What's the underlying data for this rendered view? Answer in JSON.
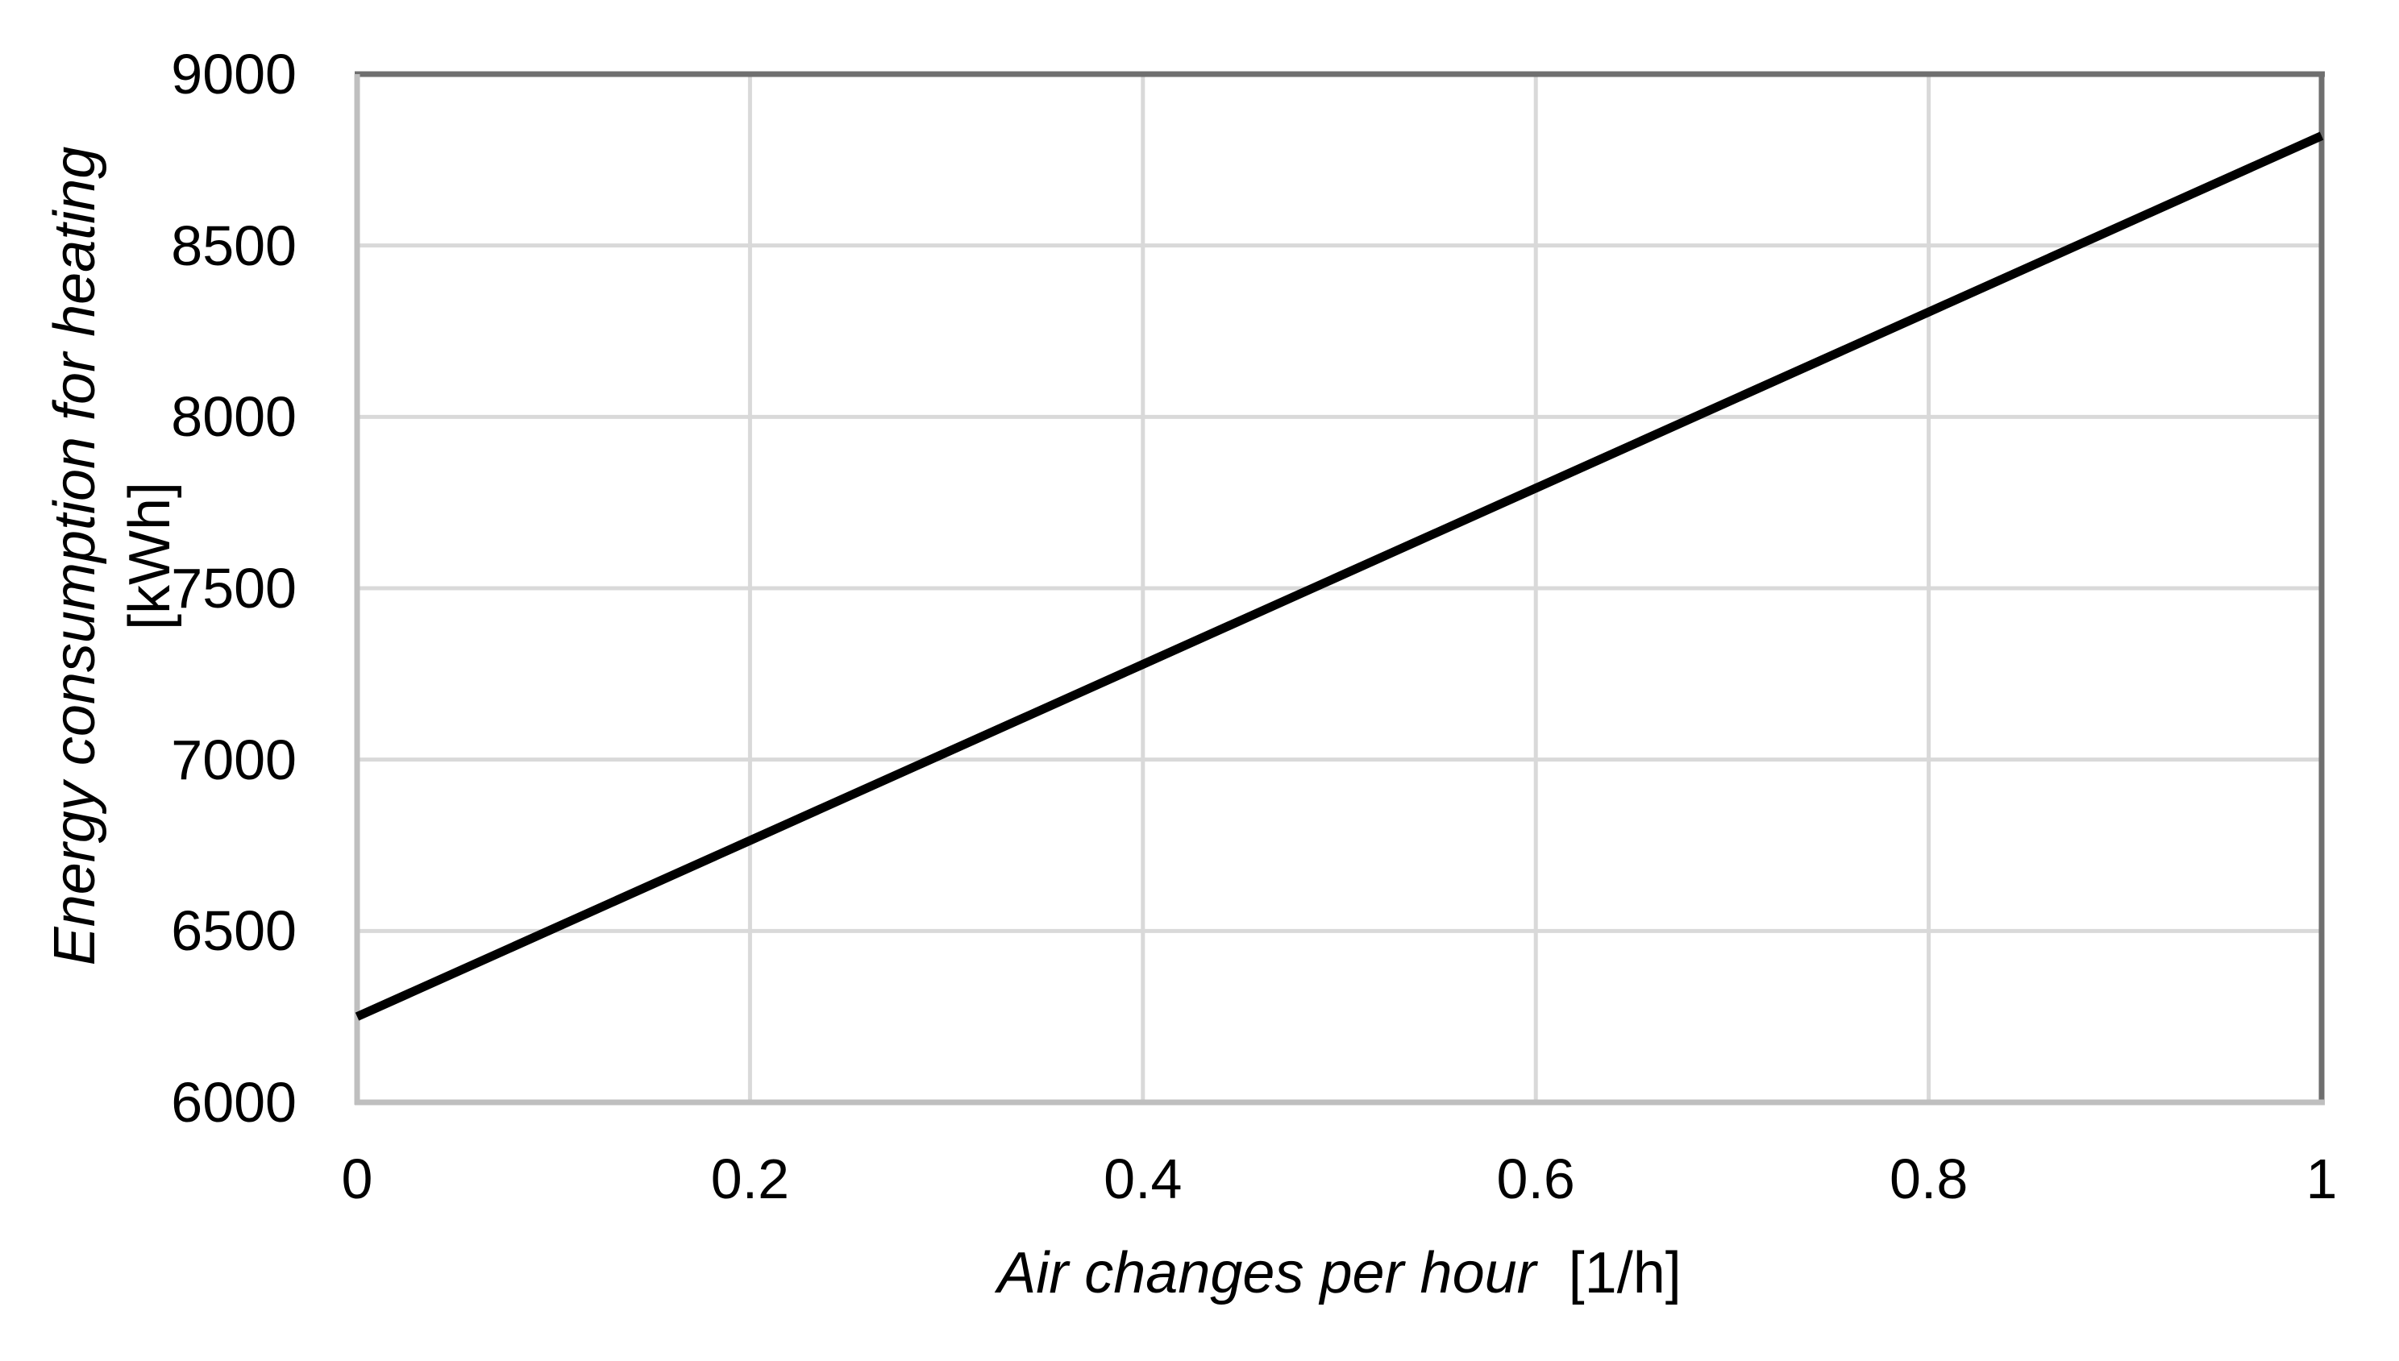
{
  "chart_data": {
    "type": "line",
    "xlabel_main": "Air changes per hour",
    "xlabel_unit": "[1/h]",
    "ylabel_main": "Energy consumption for heating",
    "ylabel_unit": "[kWh]",
    "xlim": [
      0,
      1
    ],
    "ylim": [
      6000,
      9000
    ],
    "xticks": [
      0,
      0.2,
      0.4,
      0.6,
      0.8,
      1
    ],
    "xtick_labels": [
      "0",
      "0.2",
      "0.4",
      "0.6",
      "0.8",
      "1"
    ],
    "yticks": [
      6000,
      6500,
      7000,
      7500,
      8000,
      8500,
      9000
    ],
    "ytick_labels": [
      "6000",
      "6500",
      "7000",
      "7500",
      "8000",
      "8500",
      "9000"
    ],
    "grid": true,
    "legend": false,
    "series": [
      {
        "name": "Energy consumption for heating",
        "color": "#000000",
        "x": [
          0,
          0.2,
          0.4,
          0.6,
          0.8,
          1
        ],
        "y": [
          6250,
          6764,
          7278,
          7792,
          8306,
          8820
        ]
      }
    ]
  },
  "colors": {
    "series_line": "#000000",
    "gridline": "#d9d9d9",
    "axis_line": "#bfbfbf",
    "plot_border": "#6f6f6f",
    "text": "#000000",
    "background": "#ffffff"
  }
}
